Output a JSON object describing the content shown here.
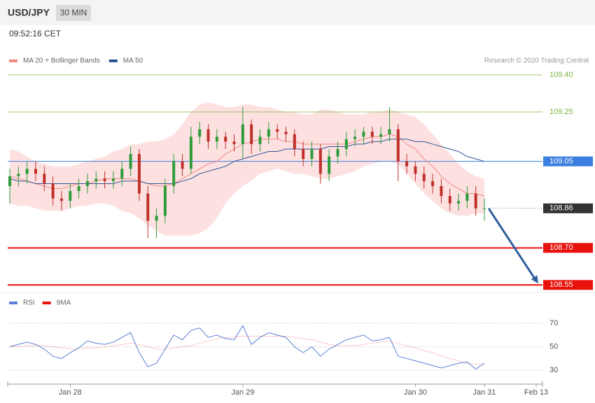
{
  "header": {
    "symbol": "USD/JPY",
    "interval": "30 MIN",
    "time": "09:52:16 CET",
    "credit": "Research © 2020 Trading Central"
  },
  "chart_data": [
    {
      "type": "candlestick",
      "categories": [
        null,
        null,
        null,
        null,
        null,
        null,
        null,
        "Jan 28",
        null,
        null,
        null,
        null,
        null,
        null,
        null,
        null,
        null,
        null,
        null,
        null,
        null,
        null,
        null,
        null,
        null,
        null,
        null,
        "Jan 29",
        null,
        null,
        null,
        null,
        null,
        null,
        null,
        null,
        null,
        null,
        null,
        null,
        null,
        null,
        null,
        null,
        null,
        null,
        null,
        "Jan 30",
        null,
        null,
        null,
        null,
        null,
        null,
        null,
        "Jan 31",
        null,
        null,
        null,
        null,
        null,
        "Feb 13"
      ],
      "open": [
        108.95,
        108.99,
        109.0,
        109.02,
        109.0,
        108.96,
        108.9,
        108.89,
        108.93,
        108.95,
        108.97,
        108.98,
        108.97,
        108.98,
        109.02,
        109.08,
        108.92,
        108.81,
        108.83,
        108.95,
        109.05,
        109.02,
        109.15,
        109.18,
        109.13,
        109.15,
        109.13,
        109.12,
        109.2,
        109.12,
        109.15,
        109.18,
        109.17,
        109.16,
        109.1,
        109.06,
        109.1,
        109.0,
        109.07,
        109.1,
        109.14,
        109.15,
        109.17,
        109.15,
        109.16,
        109.18,
        109.05,
        109.03,
        109.0,
        108.97,
        108.95,
        108.91,
        108.88,
        108.89,
        108.92,
        108.86,
        null,
        null,
        null,
        null,
        null,
        null
      ],
      "high": [
        109.02,
        109.03,
        109.05,
        109.05,
        109.03,
        108.99,
        108.93,
        108.96,
        108.98,
        109.0,
        109.01,
        109.01,
        109.01,
        109.05,
        109.11,
        109.1,
        108.95,
        108.86,
        108.98,
        109.08,
        109.08,
        109.19,
        109.21,
        109.2,
        109.18,
        109.17,
        109.16,
        109.27,
        109.22,
        109.18,
        109.21,
        109.2,
        109.19,
        109.18,
        109.13,
        109.13,
        109.12,
        109.1,
        109.13,
        109.17,
        109.18,
        109.19,
        109.19,
        109.19,
        109.27,
        109.2,
        109.08,
        109.05,
        109.03,
        109.0,
        108.98,
        108.94,
        108.92,
        108.95,
        108.95,
        108.9,
        null,
        null,
        null,
        null,
        null,
        null
      ],
      "low": [
        108.88,
        108.95,
        108.96,
        108.97,
        108.93,
        108.87,
        108.85,
        108.86,
        108.9,
        108.92,
        108.94,
        108.94,
        108.94,
        108.95,
        108.99,
        108.89,
        108.74,
        108.74,
        108.8,
        108.92,
        108.99,
        109.0,
        109.12,
        109.1,
        109.1,
        109.1,
        109.09,
        109.06,
        109.08,
        109.09,
        109.12,
        109.14,
        109.13,
        109.07,
        109.03,
        109.03,
        108.96,
        108.97,
        109.04,
        109.07,
        109.11,
        109.12,
        109.12,
        109.12,
        109.13,
        108.97,
        109.0,
        108.97,
        108.94,
        108.92,
        108.88,
        108.85,
        108.85,
        108.86,
        108.83,
        108.81,
        null,
        null,
        null,
        null,
        null,
        null
      ],
      "close": [
        108.99,
        109.0,
        109.02,
        109.0,
        108.96,
        108.9,
        108.89,
        108.93,
        108.95,
        108.97,
        108.98,
        108.97,
        108.98,
        109.02,
        109.08,
        108.92,
        108.81,
        108.83,
        108.95,
        109.05,
        109.02,
        109.15,
        109.18,
        109.13,
        109.15,
        109.13,
        109.12,
        109.2,
        109.12,
        109.15,
        109.18,
        109.17,
        109.16,
        109.1,
        109.06,
        109.1,
        109.0,
        109.07,
        109.1,
        109.14,
        109.15,
        109.17,
        109.15,
        109.16,
        109.18,
        109.05,
        109.03,
        109.0,
        108.97,
        108.95,
        108.91,
        108.88,
        108.89,
        108.92,
        108.86,
        108.86,
        null,
        null,
        null,
        null,
        null,
        null
      ],
      "up_color": "#2e9b3a",
      "down_color": "#c0302a",
      "series": [
        {
          "name": "MA 20 + Bollinger Bands",
          "color": "#f08a84",
          "band_color": "#fde1e1",
          "values": [
            108.99,
            108.98,
            108.97,
            108.96,
            108.95,
            108.94,
            108.94,
            108.95,
            108.96,
            108.96,
            108.97,
            108.98,
            108.98,
            108.98,
            108.98,
            108.97,
            108.96,
            108.95,
            108.95,
            108.96,
            108.98,
            109.0,
            109.02,
            109.04,
            109.05,
            109.08,
            109.1,
            109.12,
            109.13,
            109.14,
            109.14,
            109.14,
            109.13,
            109.13,
            109.12,
            109.12,
            109.12,
            109.12,
            109.12,
            109.12,
            109.13,
            109.14,
            109.15,
            109.15,
            109.16,
            109.15,
            109.12,
            109.1,
            109.06,
            109.03,
            108.99,
            108.96,
            108.94,
            108.92,
            108.92,
            108.91,
            null,
            null,
            null,
            null,
            null,
            null
          ],
          "upper": [
            109.1,
            109.09,
            109.07,
            109.05,
            109.04,
            109.03,
            109.03,
            109.03,
            109.04,
            109.05,
            109.06,
            109.07,
            109.09,
            109.1,
            109.12,
            109.12,
            109.13,
            109.13,
            109.14,
            109.16,
            109.2,
            109.25,
            109.28,
            109.29,
            109.28,
            109.27,
            109.27,
            109.28,
            109.28,
            109.27,
            109.27,
            109.26,
            109.25,
            109.25,
            109.24,
            109.24,
            109.26,
            109.26,
            109.25,
            109.24,
            109.24,
            109.24,
            109.25,
            109.25,
            109.26,
            109.25,
            109.24,
            109.23,
            109.2,
            109.16,
            109.12,
            109.08,
            109.04,
            109.01,
            108.99,
            108.98,
            null,
            null,
            null,
            null,
            null,
            null
          ],
          "lower": [
            108.88,
            108.87,
            108.87,
            108.86,
            108.85,
            108.85,
            108.85,
            108.86,
            108.87,
            108.87,
            108.88,
            108.88,
            108.87,
            108.85,
            108.84,
            108.82,
            108.79,
            108.77,
            108.75,
            108.75,
            108.75,
            108.75,
            108.76,
            108.78,
            108.82,
            108.88,
            108.92,
            108.95,
            108.97,
            109.0,
            109.01,
            109.02,
            109.01,
            109.0,
            109.0,
            108.99,
            108.98,
            108.98,
            108.99,
            109.0,
            109.01,
            109.03,
            109.04,
            109.05,
            109.05,
            109.04,
            109.0,
            108.96,
            108.92,
            108.89,
            108.86,
            108.84,
            108.83,
            108.83,
            108.84,
            108.84,
            null,
            null,
            null,
            null,
            null,
            null
          ]
        },
        {
          "name": "MA 50",
          "color": "#2f5597",
          "values": [
            108.98,
            108.97,
            108.97,
            108.96,
            108.96,
            108.96,
            108.96,
            108.96,
            108.96,
            108.96,
            108.96,
            108.96,
            108.96,
            108.97,
            108.97,
            108.97,
            108.96,
            108.96,
            108.96,
            108.96,
            108.97,
            108.98,
            109.0,
            109.01,
            109.02,
            109.03,
            109.05,
            109.06,
            109.07,
            109.08,
            109.09,
            109.09,
            109.1,
            109.1,
            109.1,
            109.1,
            109.1,
            109.11,
            109.11,
            109.11,
            109.12,
            109.12,
            109.13,
            109.13,
            109.14,
            109.14,
            109.14,
            109.13,
            109.13,
            109.12,
            109.11,
            109.1,
            109.09,
            109.07,
            109.06,
            109.05,
            null,
            null,
            null,
            null,
            null,
            null
          ]
        }
      ],
      "ylim": [
        108.52,
        109.44
      ],
      "levels": [
        {
          "value": 109.4,
          "label": "109.40",
          "color": "#7cb342",
          "line": "thin",
          "label_style": "text"
        },
        {
          "value": 109.25,
          "label": "109.25",
          "color": "#7cb342",
          "line": "thin",
          "label_style": "text"
        },
        {
          "value": 109.05,
          "label": "109.05",
          "color": "#3d7fe0",
          "line": "thin",
          "label_style": "box"
        },
        {
          "value": 108.86,
          "label": "108.86",
          "color": "#333333",
          "line": "dotted",
          "label_style": "box"
        },
        {
          "value": 108.7,
          "label": "108.70",
          "color": "#e8120c",
          "line": "thick",
          "label_style": "box"
        },
        {
          "value": 108.55,
          "label": "108.55",
          "color": "#e8120c",
          "line": "thick",
          "label_style": "box"
        }
      ],
      "arrow_color": "#2f5f9f"
    },
    {
      "type": "line",
      "series": [
        {
          "name": "RSI",
          "color": "#5b7fd6",
          "values": [
            50,
            52,
            54,
            52,
            48,
            42,
            40,
            45,
            49,
            55,
            53,
            52,
            54,
            58,
            62,
            45,
            33,
            36,
            48,
            60,
            56,
            64,
            66,
            58,
            60,
            57,
            56,
            68,
            52,
            58,
            62,
            60,
            58,
            50,
            45,
            50,
            42,
            48,
            52,
            56,
            58,
            60,
            55,
            56,
            58,
            42,
            40,
            38,
            36,
            34,
            32,
            34,
            36,
            37,
            31,
            36,
            null,
            null,
            null,
            null,
            null,
            null
          ]
        },
        {
          "name": "9MA",
          "color": "#e8120c",
          "values": [
            50,
            50,
            51,
            51,
            51,
            50,
            49,
            48,
            48,
            49,
            49,
            50,
            51,
            52,
            53,
            52,
            50,
            48,
            48,
            49,
            50,
            51,
            53,
            55,
            57,
            58,
            58,
            59,
            59,
            59,
            59,
            59,
            59,
            58,
            57,
            56,
            54,
            52,
            51,
            51,
            51,
            52,
            53,
            54,
            55,
            53,
            51,
            49,
            47,
            45,
            42,
            40,
            38,
            36,
            35,
            35,
            null,
            null,
            null,
            null,
            null,
            null
          ]
        }
      ],
      "ylim": [
        20,
        80
      ],
      "yticks": [
        70,
        50,
        30
      ],
      "grid": true
    }
  ]
}
